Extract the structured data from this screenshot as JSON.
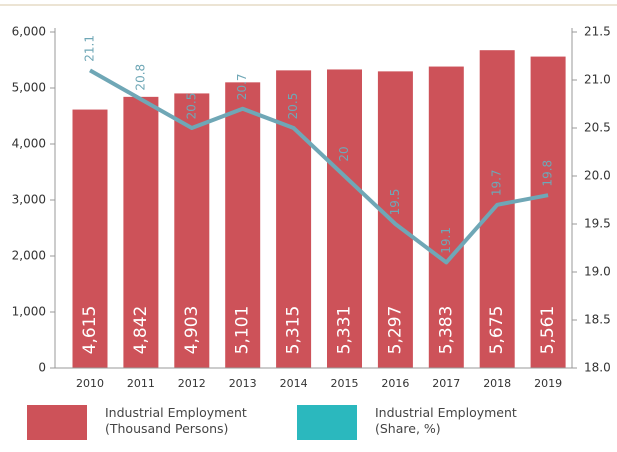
{
  "chart_data": {
    "type": "bar_line",
    "categories": [
      "2010",
      "2011",
      "2012",
      "2013",
      "2014",
      "2015",
      "2016",
      "2017",
      "2018",
      "2019"
    ],
    "series": [
      {
        "name": "Industrial Employment (Thousand Persons)",
        "color": "#cd5259",
        "type": "bar",
        "values": [
          4615,
          4842,
          4903,
          5101,
          5315,
          5331,
          5297,
          5383,
          5675,
          5561
        ],
        "value_labels": [
          "4,615",
          "4,842",
          "4,903",
          "5,101",
          "5,315",
          "5,331",
          "5,297",
          "5,383",
          "5,675",
          "5,561"
        ]
      },
      {
        "name": "Industrial Employment (Share, %)",
        "color": "#6fa7b6",
        "legend_color": "#2bb8be",
        "type": "line",
        "axis": "y2",
        "values": [
          21.1,
          20.8,
          20.5,
          20.7,
          20.5,
          20.0,
          19.5,
          19.1,
          19.7,
          19.8
        ]
      }
    ],
    "ylim": [
      0,
      6000
    ],
    "yticks": [
      0,
      {
        "value": 1000,
        "label": "1,000"
      },
      {
        "value": 2000,
        "label": "2,000"
      },
      {
        "value": 3000,
        "label": "3,000"
      },
      {
        "value": 4000,
        "label": "4,000"
      },
      {
        "value": 5000,
        "label": "5,000"
      },
      {
        "value": 6000,
        "label": "6,000"
      }
    ],
    "y2lim": [
      18.0,
      21.5
    ],
    "y2ticks": [
      {
        "value": 18,
        "label": "18.0"
      },
      18.5,
      {
        "value": 19,
        "label": "19.0"
      },
      19.5,
      {
        "value": 20,
        "label": "20.0"
      },
      20.5,
      {
        "value": 21,
        "label": "21.0"
      },
      21.5
    ]
  }
}
